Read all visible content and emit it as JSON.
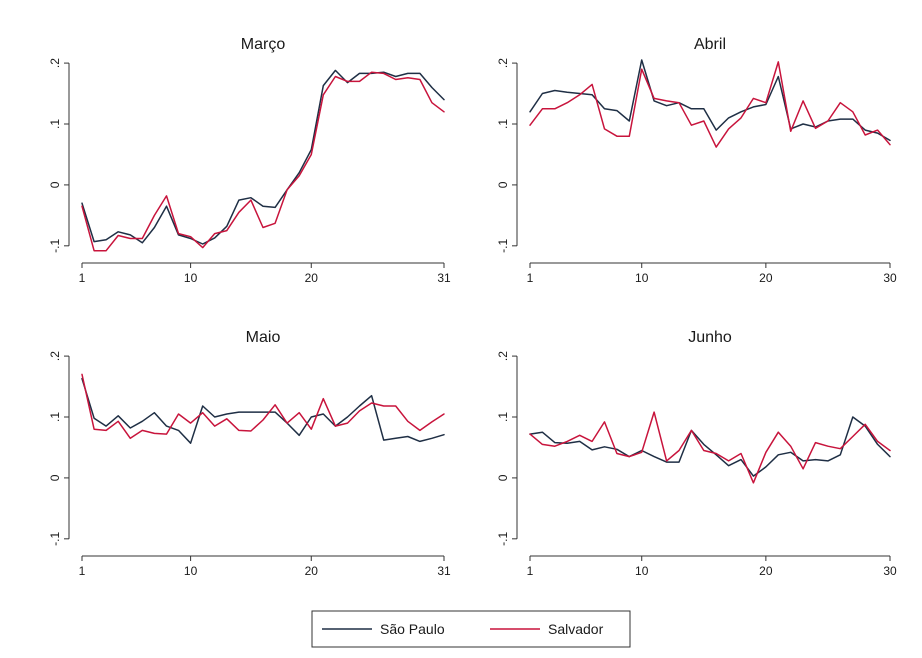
{
  "chart_data": [
    {
      "type": "line",
      "title": "Março",
      "xlim": [
        1,
        31
      ],
      "ylim": [
        -0.12,
        0.21
      ],
      "xticks": [
        1,
        10,
        20,
        31
      ],
      "yticks": [
        -0.1,
        0,
        0.1,
        0.2
      ],
      "ytick_labels": [
        "-.1",
        "0",
        ".1",
        ".2"
      ],
      "x": [
        1,
        2,
        3,
        4,
        5,
        6,
        7,
        8,
        9,
        10,
        11,
        12,
        13,
        14,
        15,
        16,
        17,
        18,
        19,
        20,
        21,
        22,
        23,
        24,
        25,
        26,
        27,
        28,
        29,
        30,
        31
      ],
      "series": [
        {
          "name": "São Paulo",
          "color": "#1f2f45",
          "values": [
            -0.03,
            -0.093,
            -0.09,
            -0.077,
            -0.082,
            -0.095,
            -0.07,
            -0.035,
            -0.082,
            -0.088,
            -0.097,
            -0.087,
            -0.068,
            -0.025,
            -0.021,
            -0.035,
            -0.037,
            -0.008,
            0.02,
            0.058,
            0.163,
            0.188,
            0.168,
            0.183,
            0.183,
            0.185,
            0.178,
            0.183,
            0.183,
            0.16,
            0.14
          ]
        },
        {
          "name": "Salvador",
          "color": "#c8143c",
          "values": [
            -0.035,
            -0.108,
            -0.108,
            -0.083,
            -0.088,
            -0.088,
            -0.05,
            -0.018,
            -0.08,
            -0.085,
            -0.103,
            -0.08,
            -0.075,
            -0.045,
            -0.025,
            -0.07,
            -0.063,
            -0.008,
            0.015,
            0.05,
            0.148,
            0.178,
            0.17,
            0.17,
            0.185,
            0.183,
            0.173,
            0.176,
            0.173,
            0.135,
            0.12
          ]
        }
      ]
    },
    {
      "type": "line",
      "title": "Abril",
      "xlim": [
        1,
        30
      ],
      "ylim": [
        -0.12,
        0.21
      ],
      "xticks": [
        1,
        10,
        20,
        30
      ],
      "yticks": [
        -0.1,
        0,
        0.1,
        0.2
      ],
      "ytick_labels": [
        "-.1",
        "0",
        ".1",
        ".2"
      ],
      "x": [
        1,
        2,
        3,
        4,
        5,
        6,
        7,
        8,
        9,
        10,
        11,
        12,
        13,
        14,
        15,
        16,
        17,
        18,
        19,
        20,
        21,
        22,
        23,
        24,
        25,
        26,
        27,
        28,
        29,
        30
      ],
      "series": [
        {
          "name": "São Paulo",
          "color": "#1f2f45",
          "values": [
            0.12,
            0.15,
            0.155,
            0.152,
            0.15,
            0.148,
            0.125,
            0.122,
            0.105,
            0.205,
            0.138,
            0.13,
            0.135,
            0.125,
            0.125,
            0.09,
            0.11,
            0.12,
            0.128,
            0.132,
            0.178,
            0.092,
            0.1,
            0.095,
            0.105,
            0.108,
            0.108,
            0.09,
            0.085,
            0.073
          ]
        },
        {
          "name": "Salvador",
          "color": "#c8143c",
          "values": [
            0.098,
            0.125,
            0.125,
            0.135,
            0.148,
            0.165,
            0.092,
            0.08,
            0.08,
            0.19,
            0.142,
            0.138,
            0.135,
            0.098,
            0.105,
            0.062,
            0.092,
            0.11,
            0.142,
            0.135,
            0.202,
            0.088,
            0.138,
            0.093,
            0.105,
            0.135,
            0.12,
            0.082,
            0.09,
            0.066
          ]
        }
      ]
    },
    {
      "type": "line",
      "title": "Maio",
      "xlim": [
        1,
        31
      ],
      "ylim": [
        -0.12,
        0.21
      ],
      "xticks": [
        1,
        10,
        20,
        31
      ],
      "yticks": [
        -0.1,
        0,
        0.1,
        0.2
      ],
      "ytick_labels": [
        "-.1",
        "0",
        ".1",
        ".2"
      ],
      "x": [
        1,
        2,
        3,
        4,
        5,
        6,
        7,
        8,
        9,
        10,
        11,
        12,
        13,
        14,
        15,
        16,
        17,
        18,
        19,
        20,
        21,
        22,
        23,
        24,
        25,
        26,
        27,
        28,
        29,
        30,
        31
      ],
      "series": [
        {
          "name": "São Paulo",
          "color": "#1f2f45",
          "values": [
            0.163,
            0.098,
            0.085,
            0.102,
            0.082,
            0.093,
            0.107,
            0.085,
            0.078,
            0.057,
            0.118,
            0.1,
            0.105,
            0.108,
            0.108,
            0.108,
            0.108,
            0.09,
            0.07,
            0.1,
            0.105,
            0.085,
            0.1,
            0.118,
            0.135,
            0.062,
            0.065,
            0.068,
            0.06,
            0.065,
            0.071
          ]
        },
        {
          "name": "Salvador",
          "color": "#c8143c",
          "values": [
            0.17,
            0.08,
            0.078,
            0.093,
            0.065,
            0.078,
            0.073,
            0.072,
            0.105,
            0.09,
            0.107,
            0.085,
            0.097,
            0.078,
            0.077,
            0.095,
            0.12,
            0.09,
            0.107,
            0.08,
            0.13,
            0.085,
            0.09,
            0.11,
            0.123,
            0.118,
            0.118,
            0.093,
            0.078,
            0.092,
            0.105
          ]
        }
      ]
    },
    {
      "type": "line",
      "title": "Junho",
      "xlim": [
        1,
        30
      ],
      "ylim": [
        -0.12,
        0.21
      ],
      "xticks": [
        1,
        10,
        20,
        30
      ],
      "yticks": [
        -0.1,
        0,
        0.1,
        0.2
      ],
      "ytick_labels": [
        "-.1",
        "0",
        ".1",
        ".2"
      ],
      "x": [
        1,
        2,
        3,
        4,
        5,
        6,
        7,
        8,
        9,
        10,
        11,
        12,
        13,
        14,
        15,
        16,
        17,
        18,
        19,
        20,
        21,
        22,
        23,
        24,
        25,
        26,
        27,
        28,
        29,
        30
      ],
      "series": [
        {
          "name": "São Paulo",
          "color": "#1f2f45",
          "values": [
            0.072,
            0.075,
            0.058,
            0.057,
            0.06,
            0.046,
            0.051,
            0.047,
            0.035,
            0.045,
            0.035,
            0.026,
            0.026,
            0.078,
            0.055,
            0.038,
            0.02,
            0.03,
            0.003,
            0.018,
            0.038,
            0.042,
            0.028,
            0.03,
            0.028,
            0.038,
            0.1,
            0.085,
            0.055,
            0.035
          ]
        },
        {
          "name": "Salvador",
          "color": "#c8143c",
          "values": [
            0.072,
            0.055,
            0.052,
            0.06,
            0.07,
            0.06,
            0.092,
            0.04,
            0.035,
            0.042,
            0.108,
            0.028,
            0.045,
            0.078,
            0.045,
            0.04,
            0.028,
            0.04,
            -0.008,
            0.042,
            0.075,
            0.052,
            0.015,
            0.058,
            0.052,
            0.048,
            0.068,
            0.088,
            0.06,
            0.045
          ]
        }
      ]
    }
  ],
  "legend": {
    "placement": "bottom-center",
    "items": [
      {
        "label": "São Paulo",
        "color": "#1f2f45"
      },
      {
        "label": "Salvador",
        "color": "#c8143c"
      }
    ]
  }
}
